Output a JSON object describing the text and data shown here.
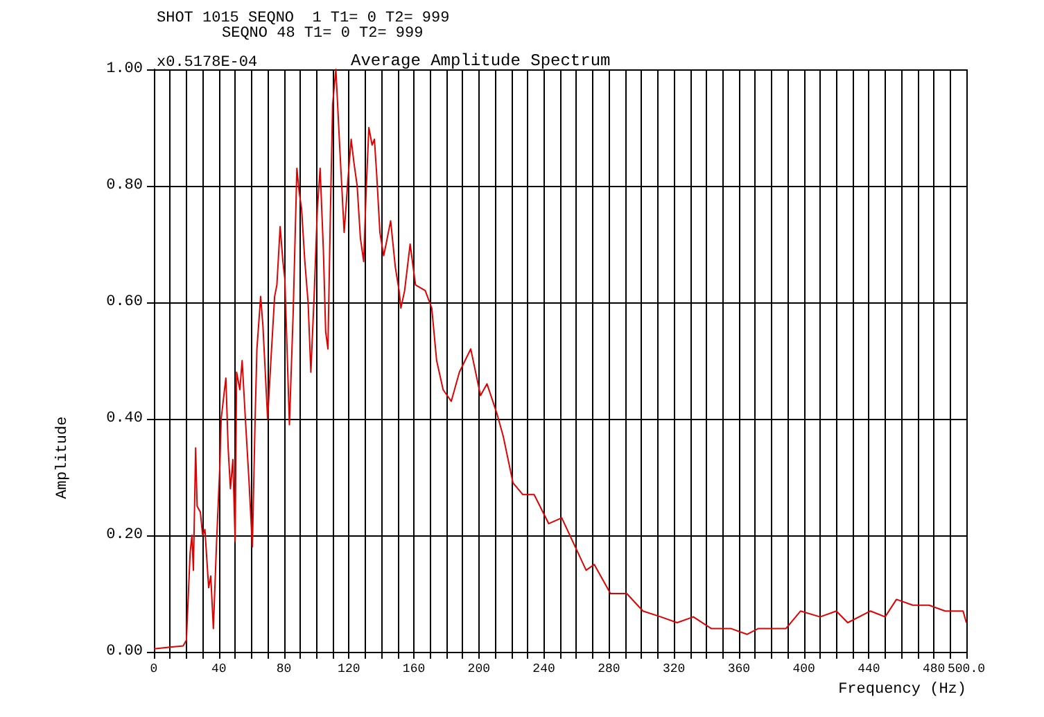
{
  "chart_data": {
    "type": "line",
    "title": "Average Amplitude Spectrum",
    "xlabel": "Frequency (Hz)",
    "ylabel": "Amplitude",
    "annotations": [
      "SHOT 1015 SEQNO  1 T1= 0 T2= 999",
      "SEQNO 48 T1= 0 T2= 999",
      "x0.5178E-04"
    ],
    "xlim": [
      0,
      500
    ],
    "ylim": [
      0,
      1
    ],
    "xticks": [
      0,
      {
        "value": 10,
        "label": null
      },
      {
        "value": 20,
        "label": null
      },
      {
        "value": 30,
        "label": null
      },
      40,
      {
        "value": 50,
        "label": null
      },
      {
        "value": 60,
        "label": null
      },
      {
        "value": 70,
        "label": null
      },
      80,
      {
        "value": 90,
        "label": null
      },
      {
        "value": 100,
        "label": null
      },
      {
        "value": 110,
        "label": null
      },
      120,
      {
        "value": 130,
        "label": null
      },
      {
        "value": 140,
        "label": null
      },
      {
        "value": 150,
        "label": null
      },
      160,
      {
        "value": 170,
        "label": null
      },
      {
        "value": 180,
        "label": null
      },
      {
        "value": 190,
        "label": null
      },
      200,
      {
        "value": 210,
        "label": null
      },
      {
        "value": 220,
        "label": null
      },
      {
        "value": 230,
        "label": null
      },
      240,
      {
        "value": 250,
        "label": null
      },
      {
        "value": 260,
        "label": null
      },
      {
        "value": 270,
        "label": null
      },
      280,
      {
        "value": 290,
        "label": null
      },
      {
        "value": 300,
        "label": null
      },
      {
        "value": 310,
        "label": null
      },
      320,
      {
        "value": 330,
        "label": null
      },
      {
        "value": 340,
        "label": null
      },
      {
        "value": 350,
        "label": null
      },
      360,
      {
        "value": 370,
        "label": null
      },
      {
        "value": 380,
        "label": null
      },
      {
        "value": 390,
        "label": null
      },
      400,
      {
        "value": 410,
        "label": null
      },
      {
        "value": 420,
        "label": null
      },
      {
        "value": 430,
        "label": null
      },
      440,
      {
        "value": 450,
        "label": null
      },
      {
        "value": 460,
        "label": null
      },
      {
        "value": 470,
        "label": null
      },
      480,
      {
        "value": 490,
        "label": null
      },
      {
        "value": 500,
        "label": "500.0"
      }
    ],
    "yticks": [
      {
        "value": 0,
        "label": "0.00"
      },
      {
        "value": 0.2,
        "label": "0.20"
      },
      {
        "value": 0.4,
        "label": "0.40"
      },
      {
        "value": 0.6,
        "label": "0.60"
      },
      {
        "value": 0.8,
        "label": "0.80"
      },
      {
        "value": 1,
        "label": "1.00"
      }
    ],
    "grid": true,
    "marker": "none",
    "line_style": "solid",
    "series": [
      {
        "color": "#e00000",
        "x": [
          0,
          10,
          18,
          20,
          22.3,
          23.4,
          24.3,
          25.7,
          26.6,
          28.6,
          30,
          31.4,
          33.7,
          35,
          36.6,
          38.6,
          40.6,
          41.4,
          44.3,
          45.7,
          47.1,
          48.6,
          50,
          50.9,
          52.9,
          54.3,
          56.3,
          58.6,
          60.6,
          62.3,
          63.4,
          65.7,
          67.1,
          70,
          72,
          74.3,
          75.7,
          77.7,
          79.4,
          80.6,
          83.4,
          85.7,
          88,
          89.4,
          90.9,
          92.9,
          94.9,
          96.6,
          98.6,
          100.6,
          102.3,
          104.3,
          105.7,
          107.1,
          108.6,
          110,
          112,
          114.3,
          117.1,
          119.4,
          121.4,
          123.1,
          125.1,
          127.1,
          129.1,
          130.6,
          132.3,
          134.3,
          135.7,
          137.1,
          139.1,
          141.4,
          142.9,
          145.7,
          148.6,
          150.9,
          152,
          154.3,
          157.7,
          161,
          167,
          171,
          174,
          178,
          183,
          188,
          195,
          201,
          205,
          211,
          215,
          221,
          227,
          234,
          243,
          251,
          261,
          266,
          271,
          281,
          291,
          301,
          312,
          322,
          332,
          343,
          355,
          365,
          372,
          381,
          389,
          398,
          410,
          420,
          427,
          441,
          450,
          457,
          467,
          477,
          487,
          498,
          500
        ],
        "values": [
          0.005,
          0.008,
          0.01,
          0.02,
          0.17,
          0.2,
          0.14,
          0.35,
          0.25,
          0.24,
          0.2,
          0.21,
          0.11,
          0.13,
          0.04,
          0.19,
          0.32,
          0.4,
          0.47,
          0.35,
          0.28,
          0.33,
          0.19,
          0.48,
          0.45,
          0.5,
          0.4,
          0.29,
          0.18,
          0.4,
          0.52,
          0.61,
          0.56,
          0.4,
          0.5,
          0.61,
          0.63,
          0.73,
          0.67,
          0.64,
          0.39,
          0.58,
          0.83,
          0.79,
          0.76,
          0.67,
          0.6,
          0.48,
          0.61,
          0.76,
          0.83,
          0.69,
          0.55,
          0.52,
          0.75,
          0.94,
          1.0,
          0.87,
          0.72,
          0.81,
          0.88,
          0.84,
          0.8,
          0.71,
          0.67,
          0.79,
          0.9,
          0.87,
          0.88,
          0.82,
          0.72,
          0.68,
          0.7,
          0.74,
          0.66,
          0.62,
          0.59,
          0.62,
          0.7,
          0.63,
          0.62,
          0.59,
          0.5,
          0.45,
          0.43,
          0.48,
          0.52,
          0.44,
          0.46,
          0.41,
          0.37,
          0.29,
          0.27,
          0.27,
          0.22,
          0.23,
          0.17,
          0.14,
          0.15,
          0.1,
          0.1,
          0.07,
          0.06,
          0.05,
          0.06,
          0.04,
          0.04,
          0.03,
          0.04,
          0.04,
          0.04,
          0.07,
          0.06,
          0.07,
          0.05,
          0.07,
          0.06,
          0.09,
          0.08,
          0.08,
          0.07,
          0.07,
          0.05
        ]
      }
    ]
  }
}
